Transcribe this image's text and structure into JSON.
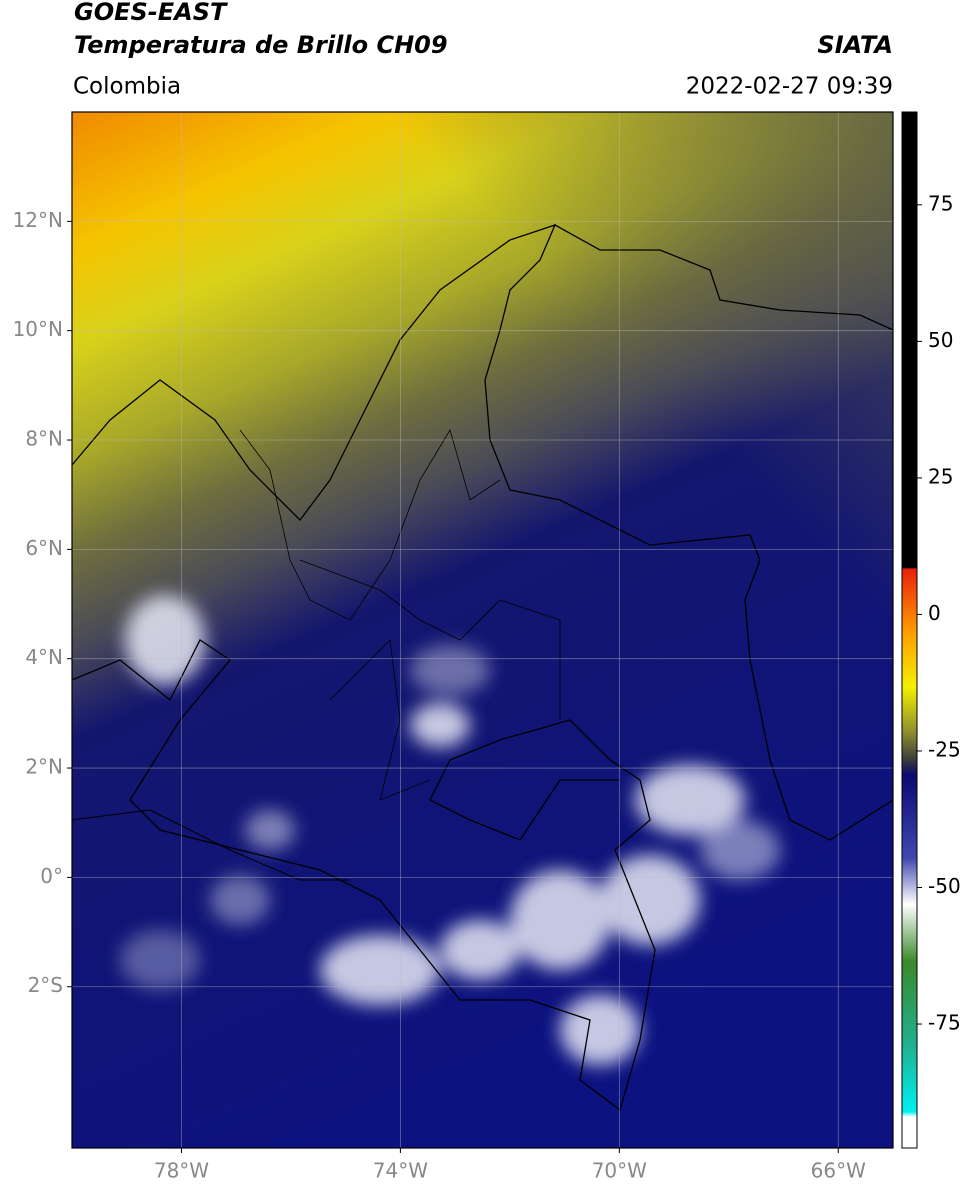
{
  "header": {
    "title": "GOES-EAST",
    "subtitle": "Temperatura de Brillo CH09",
    "region": "Colombia",
    "source": "SIATA",
    "datetime": "2022-02-27 09:39"
  },
  "map": {
    "xlim": [
      -80,
      -65
    ],
    "ylim": [
      -4.95,
      14
    ],
    "xticks": [
      {
        "value": -78,
        "label": "78°W"
      },
      {
        "value": -74,
        "label": "74°W"
      },
      {
        "value": -70,
        "label": "70°W"
      },
      {
        "value": -66,
        "label": "66°W"
      }
    ],
    "yticks": [
      {
        "value": 12,
        "label": "12°N"
      },
      {
        "value": 10,
        "label": "10°N"
      },
      {
        "value": 8,
        "label": "8°N"
      },
      {
        "value": 6,
        "label": "6°N"
      },
      {
        "value": 4,
        "label": "4°N"
      },
      {
        "value": 2,
        "label": "2°N"
      },
      {
        "value": 0,
        "label": "0°"
      },
      {
        "value": -2,
        "label": "2°S"
      }
    ],
    "grid": true
  },
  "colorbar": {
    "lim": [
      -97.7,
      92
    ],
    "ticks": [
      75,
      50,
      25,
      0,
      -25,
      -50,
      -75
    ]
  }
}
